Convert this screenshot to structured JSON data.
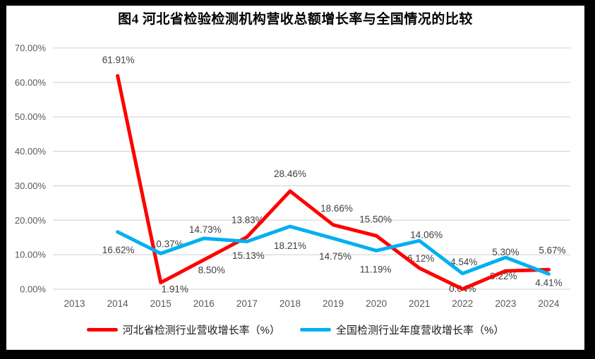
{
  "title": "图4  河北省检验检测机构营收总额增长率与全国情况的比较",
  "colors": {
    "frame_border": "#000000",
    "canvas": "#FFFFFF",
    "grid": "#D9D9D9",
    "axis_text": "#595959",
    "data_label_text": "#404040",
    "title_text": "#000000"
  },
  "chart_data": {
    "type": "line",
    "categories": [
      "2013",
      "2014",
      "2015",
      "2016",
      "2017",
      "2018",
      "2019",
      "2020",
      "2021",
      "2022",
      "2023",
      "2024"
    ],
    "y_axis": {
      "min": 0,
      "max": 70,
      "step": 10,
      "tick_labels": [
        "0.00%",
        "10.00%",
        "20.00%",
        "30.00%",
        "40.00%",
        "50.00%",
        "60.00%",
        "70.00%"
      ]
    },
    "grid": true,
    "legend_position": "bottom",
    "series": [
      {
        "name": "河北省检测行业营收增长率（%）",
        "color": "#FF0000",
        "values": [
          null,
          61.91,
          1.91,
          8.5,
          15.13,
          28.46,
          18.66,
          15.5,
          6.12,
          0.04,
          5.3,
          5.67
        ],
        "labels": [
          null,
          "61.91%",
          "1.91%",
          "8.50%",
          "15.13%",
          "28.46%",
          "18.66%",
          "15.50%",
          "6.12%",
          "0.04%",
          "5.30%",
          "5.67%"
        ],
        "label_offsets": [
          null,
          [
            1,
            -18
          ],
          [
            20,
            14
          ],
          [
            11,
            19
          ],
          [
            2,
            31
          ],
          [
            0,
            -20
          ],
          [
            5,
            -19
          ],
          [
            -1,
            -19
          ],
          [
            2,
            -9
          ],
          [
            0,
            4
          ],
          [
            0,
            -22
          ],
          [
            5,
            -23
          ]
        ]
      },
      {
        "name": "全国检测行业年度营收增长率（%）",
        "color": "#00B0F0",
        "values": [
          null,
          16.62,
          10.37,
          14.73,
          13.83,
          18.21,
          14.75,
          11.19,
          14.06,
          4.54,
          9.22,
          4.41
        ],
        "labels": [
          null,
          "16.62%",
          "10.37%",
          "14.73%",
          "13.83%",
          "18.21%",
          "14.75%",
          "11.19%",
          "14.06%",
          "4.54%",
          "9.22%",
          "4.41%"
        ],
        "label_offsets": [
          null,
          [
            1,
            30
          ],
          [
            9,
            -9
          ],
          [
            2,
            -8
          ],
          [
            1,
            -26
          ],
          [
            0,
            32
          ],
          [
            3,
            30
          ],
          [
            -1,
            31
          ],
          [
            10,
            -4
          ],
          [
            2,
            -12
          ],
          [
            -3,
            31
          ],
          [
            0,
            17
          ]
        ]
      }
    ]
  }
}
